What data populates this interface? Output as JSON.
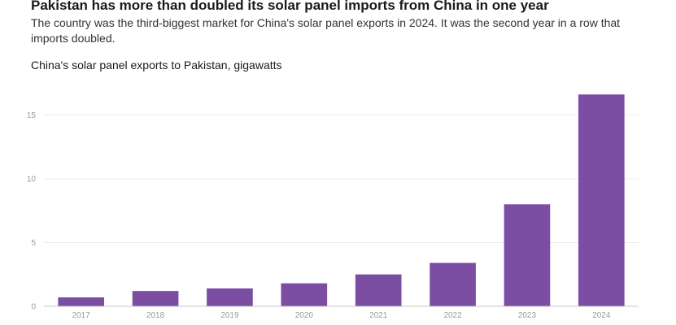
{
  "header": {
    "headline": "Pakistan has more than doubled its solar panel imports from China in one year",
    "subhead": "The country was the third-biggest market for China's solar panel exports in 2024. It was the second year in a row that imports doubled."
  },
  "chart_data": {
    "type": "bar",
    "title": "China's solar panel exports to Pakistan, gigawatts",
    "xlabel": "",
    "ylabel": "",
    "categories": [
      "2017",
      "2018",
      "2019",
      "2020",
      "2021",
      "2022",
      "2023",
      "2024"
    ],
    "values": [
      0.7,
      1.2,
      1.4,
      1.8,
      2.5,
      3.4,
      8.0,
      16.6
    ],
    "ylim": [
      0,
      17
    ],
    "yticks": [
      0,
      5,
      10,
      15
    ],
    "grid": true,
    "legend": "none",
    "bar_color": "#7b4ea3",
    "grid_color": "#ebebeb",
    "axis_color": "#c4c4c4"
  }
}
